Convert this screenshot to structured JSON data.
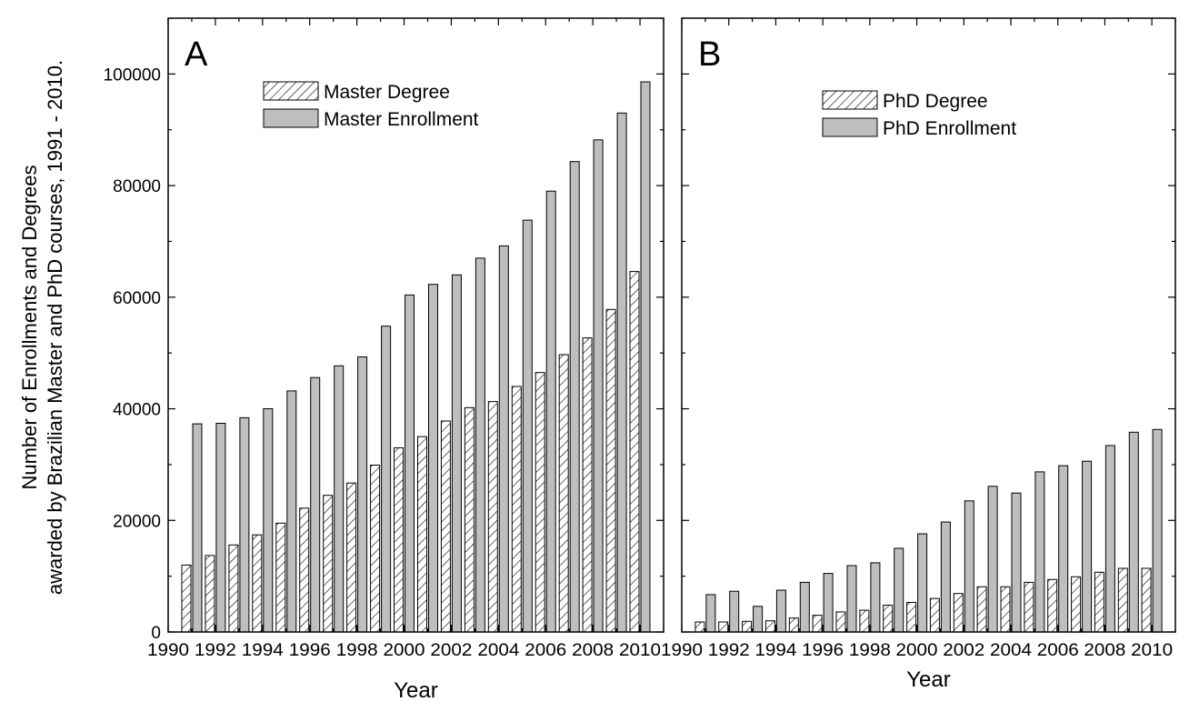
{
  "ylabel_lines": [
    "Number of Enrollments and Degrees",
    "awarded by Brazilian Master and PhD courses, 1991 - 2010."
  ],
  "chart_data": [
    {
      "type": "bar",
      "panel": "A",
      "xlabel": "Year",
      "xlim": [
        1990,
        2011
      ],
      "ylim": [
        0,
        110000
      ],
      "x_ticks": [
        1990,
        1992,
        1994,
        1996,
        1998,
        2000,
        2002,
        2004,
        2006,
        2008,
        2010
      ],
      "y_ticks": [
        0,
        20000,
        40000,
        60000,
        80000,
        100000
      ],
      "legend_position": "top-center",
      "categories": [
        1991,
        1992,
        1993,
        1994,
        1995,
        1996,
        1997,
        1998,
        1999,
        2000,
        2001,
        2002,
        2003,
        2004,
        2005,
        2006,
        2007,
        2008,
        2009,
        2010
      ],
      "series": [
        {
          "name": "Master Degree",
          "pattern": "hatched",
          "values": [
            12000,
            13700,
            15600,
            17400,
            19500,
            22200,
            24500,
            26700,
            29900,
            33000,
            35000,
            37800,
            40200,
            41300,
            44000,
            46500,
            49700,
            52700,
            57800,
            64600
          ]
        },
        {
          "name": "Master Enrollment",
          "pattern": "solid",
          "values": [
            37300,
            37400,
            38400,
            40000,
            43200,
            45600,
            47700,
            49300,
            54800,
            60400,
            62300,
            64000,
            67000,
            69200,
            73800,
            79000,
            84300,
            88200,
            93000,
            98600
          ]
        }
      ]
    },
    {
      "type": "bar",
      "panel": "B",
      "xlabel": "Year",
      "xlim": [
        1990,
        2011
      ],
      "ylim": [
        0,
        110000
      ],
      "x_ticks": [
        1990,
        1992,
        1994,
        1996,
        1998,
        2000,
        2002,
        2004,
        2006,
        2008,
        2010
      ],
      "y_ticks": [
        0,
        20000,
        40000,
        60000,
        80000,
        100000
      ],
      "legend_position": "top-center",
      "categories": [
        1991,
        1992,
        1993,
        1994,
        1995,
        1996,
        1997,
        1998,
        1999,
        2000,
        2001,
        2002,
        2003,
        2004,
        2005,
        2006,
        2007,
        2008,
        2009,
        2010
      ],
      "series": [
        {
          "name": "PhD Degree",
          "pattern": "hatched",
          "values": [
            1800,
            1800,
            1900,
            2000,
            2500,
            3000,
            3600,
            3900,
            4800,
            5300,
            6000,
            6900,
            8100,
            8100,
            8900,
            9400,
            9900,
            10700,
            11400,
            11400
          ]
        },
        {
          "name": "PhD Enrollment",
          "pattern": "solid",
          "values": [
            6700,
            7300,
            4600,
            7500,
            8900,
            10500,
            11900,
            12400,
            15000,
            17600,
            19700,
            23500,
            26100,
            24900,
            28700,
            29800,
            30600,
            33400,
            35800,
            36300
          ]
        }
      ]
    }
  ],
  "colors": {
    "solid_fill": "#bebebe",
    "hatch_fill": "#ffffff",
    "stroke": "#000000"
  }
}
